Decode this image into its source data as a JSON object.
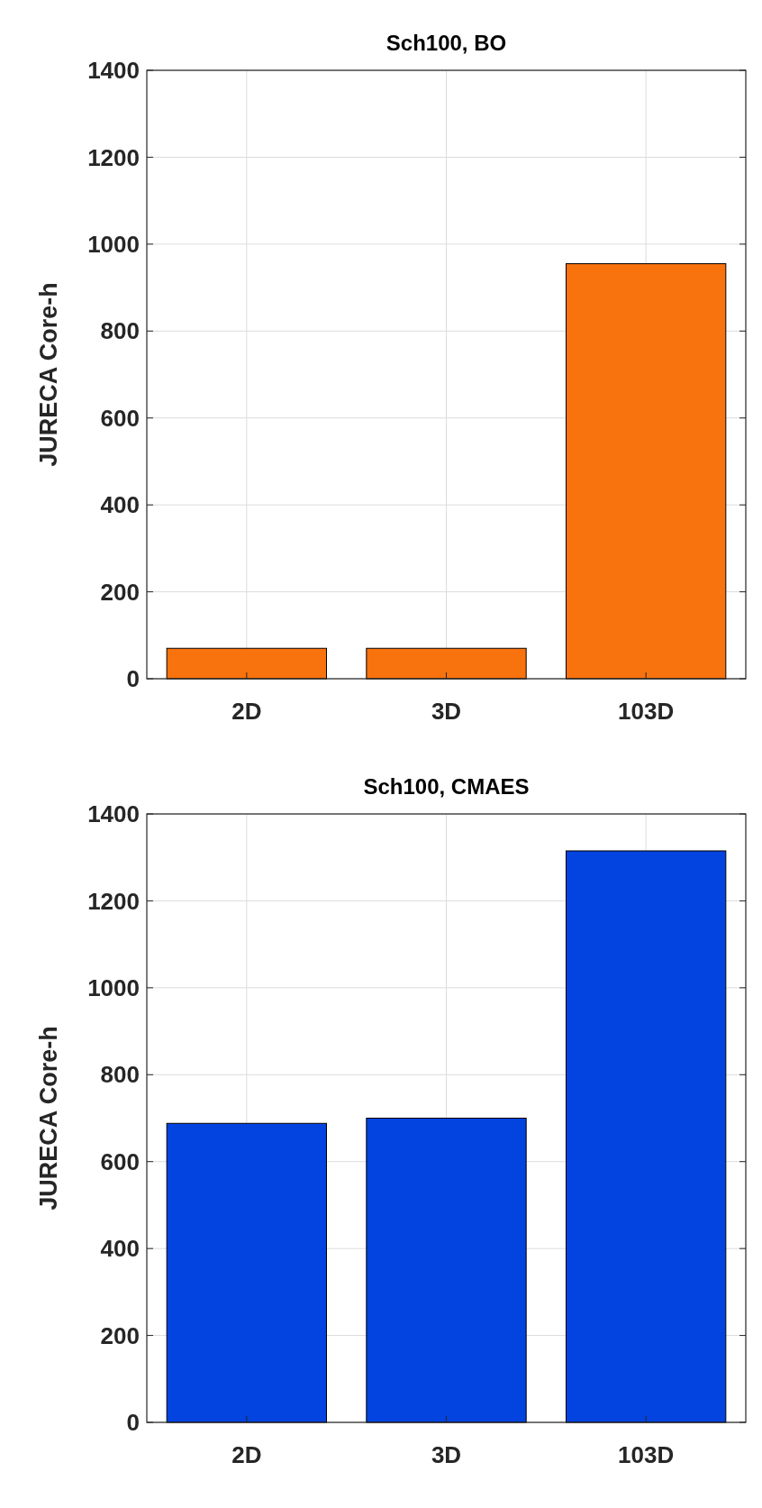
{
  "chart_data": [
    {
      "type": "bar",
      "title": "Sch100, BO",
      "ylabel": "JURECA Core-h",
      "categories": [
        "2D",
        "3D",
        "103D"
      ],
      "values": [
        70,
        70,
        955
      ],
      "color": "#f8720d",
      "ylim": [
        0,
        1400
      ],
      "yticks": [
        0,
        200,
        400,
        600,
        800,
        1000,
        1200,
        1400
      ],
      "grid": true
    },
    {
      "type": "bar",
      "title": "Sch100, CMAES",
      "ylabel": "JURECA Core-h",
      "categories": [
        "2D",
        "3D",
        "103D"
      ],
      "values": [
        688,
        700,
        1315
      ],
      "color": "#0343df",
      "ylim": [
        0,
        1400
      ],
      "yticks": [
        0,
        200,
        400,
        600,
        800,
        1000,
        1200,
        1400
      ],
      "grid": true
    }
  ]
}
